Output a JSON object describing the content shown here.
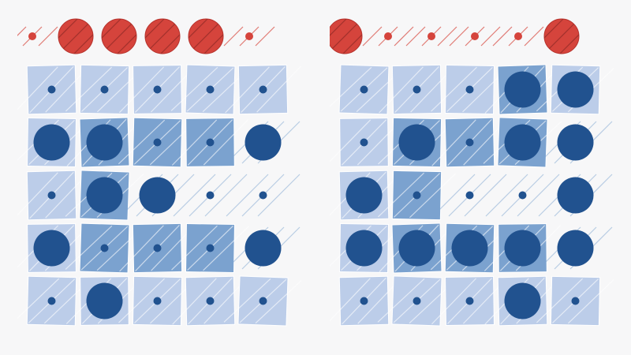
{
  "colors": {
    "background": "#f7f7f8",
    "tile_light": "#bccde9",
    "tile_medium": "#7ba2cf",
    "tile_border": "#ffffff",
    "dot_dark": "#21528f",
    "marker_red": "#d5443c",
    "marker_red_edge": "#b8342e",
    "hatch": "#ffffff",
    "hatch_dark": "#7a2420"
  },
  "icons": {
    "big_dot": "filled-circle-large",
    "small_dot": "filled-circle-small",
    "red_marker": "red-circle-marker",
    "hatch": "diagonal-hatch-lines"
  },
  "puzzles": [
    {
      "id": "left",
      "top_markers": [
        "small",
        "big",
        "big",
        "big",
        "big",
        "small"
      ],
      "tiles": [
        [
          "L",
          "L",
          "L",
          "L",
          "L"
        ],
        [
          "L",
          "M",
          "M",
          "M",
          "N"
        ],
        [
          "L",
          "M",
          "N",
          "N",
          "N"
        ],
        [
          "L",
          "M",
          "M",
          "M",
          "N"
        ],
        [
          "L",
          "L",
          "L",
          "L",
          "L"
        ]
      ],
      "dots": [
        [
          "s",
          "s",
          "s",
          "s",
          "s"
        ],
        [
          "b",
          "b",
          "s",
          "s",
          "b"
        ],
        [
          "s",
          "b",
          "b",
          "s",
          "s"
        ],
        [
          "b",
          "s",
          "s",
          "s",
          "b"
        ],
        [
          "s",
          "b",
          "s",
          "s",
          "s"
        ]
      ]
    },
    {
      "id": "right",
      "top_markers": [
        "big",
        "small",
        "small",
        "small",
        "small",
        "big"
      ],
      "tiles": [
        [
          "L",
          "L",
          "L",
          "M",
          "L"
        ],
        [
          "L",
          "M",
          "M",
          "M",
          "N"
        ],
        [
          "L",
          "M",
          "N",
          "N",
          "N"
        ],
        [
          "L",
          "M",
          "M",
          "M",
          "N"
        ],
        [
          "L",
          "L",
          "L",
          "L",
          "L"
        ]
      ],
      "dots": [
        [
          "s",
          "s",
          "s",
          "b",
          "b"
        ],
        [
          "s",
          "b",
          "s",
          "b",
          "b"
        ],
        [
          "b",
          "s",
          "s",
          "s",
          "b"
        ],
        [
          "b",
          "b",
          "b",
          "b",
          "b"
        ],
        [
          "s",
          "s",
          "s",
          "b",
          "s"
        ]
      ]
    }
  ]
}
